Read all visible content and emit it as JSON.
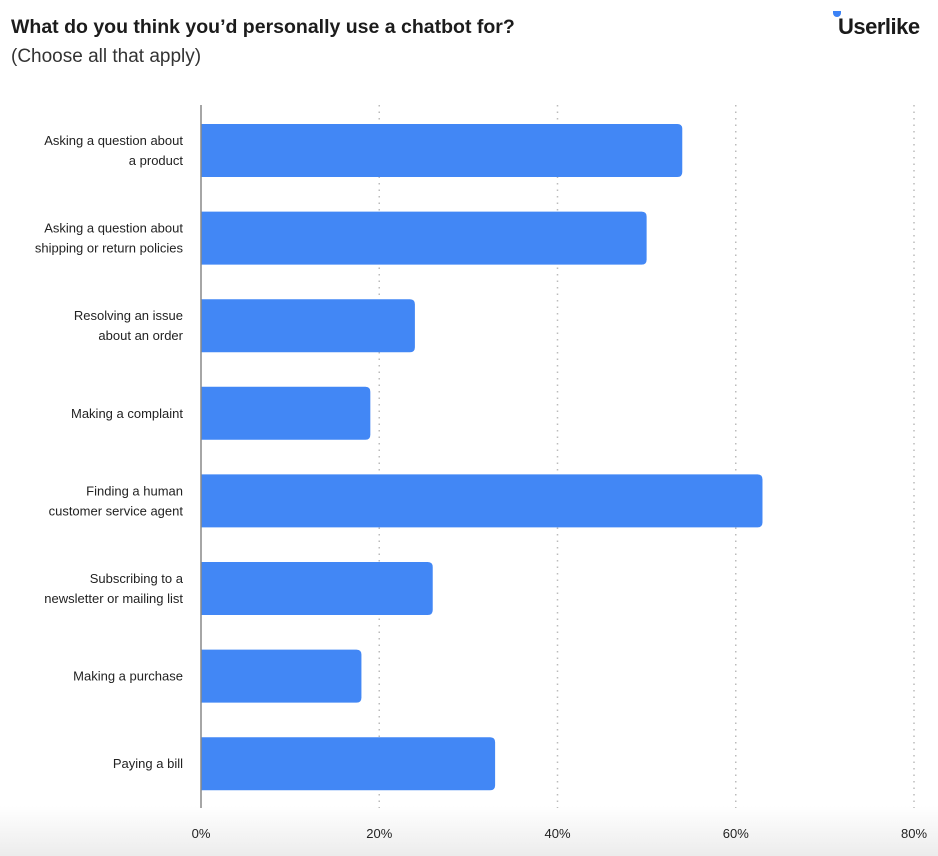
{
  "title": "What do you think you’d personally use a chatbot for?",
  "subtitle": "(Choose all that apply)",
  "logo": "Userlike",
  "chart_data": {
    "type": "bar",
    "orientation": "horizontal",
    "categories": [
      [
        "Asking a question about",
        "a product"
      ],
      [
        "Asking a question about",
        "shipping or return policies"
      ],
      [
        "Resolving an issue",
        "about an order"
      ],
      [
        "Making a complaint"
      ],
      [
        "Finding a human",
        "customer service agent"
      ],
      [
        "Subscribing to a",
        "newsletter or mailing list"
      ],
      [
        "Making a purchase"
      ],
      [
        "Paying a bill"
      ]
    ],
    "values": [
      54,
      50,
      24,
      19,
      63,
      26,
      18,
      33
    ],
    "xlim": [
      0,
      80
    ],
    "xticks": [
      "0%",
      "20%",
      "40%",
      "60%",
      "80%"
    ],
    "xtick_values": [
      0,
      20,
      40,
      60,
      80
    ],
    "grid": "vertical dotted",
    "bar_color": "#4287f5"
  }
}
